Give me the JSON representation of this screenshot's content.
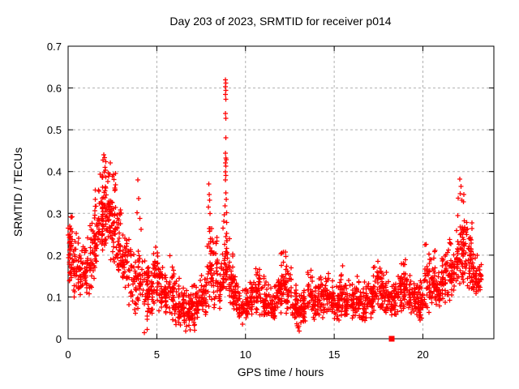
{
  "page": {
    "background": "#ffffff"
  },
  "chart_data": {
    "type": "scatter",
    "title": "Day 203 of 2023, SRMTID for receiver p014",
    "xlabel": "GPS time / hours",
    "ylabel": "SRMTID / TECUs",
    "xlim": [
      0,
      24
    ],
    "ylim": [
      0,
      0.7
    ],
    "grid": true,
    "legend": "none",
    "marker_color": "#ff0000",
    "grid_color": "#b0b0b0",
    "frame_color": "#000000",
    "xticks": [
      {
        "value": 0,
        "label": "0"
      },
      {
        "value": 5,
        "label": "5"
      },
      {
        "value": 10,
        "label": "10"
      },
      {
        "value": 15,
        "label": "15"
      },
      {
        "value": 20,
        "label": "20"
      }
    ],
    "yticks": [
      {
        "value": 0,
        "label": "0"
      },
      {
        "value": 0.1,
        "label": "0.1"
      },
      {
        "value": 0.2,
        "label": "0.2"
      },
      {
        "value": 0.3,
        "label": "0.3"
      },
      {
        "value": 0.4,
        "label": "0.4"
      },
      {
        "value": 0.5,
        "label": "0.5"
      },
      {
        "value": 0.6,
        "label": "0.6"
      },
      {
        "value": 0.7,
        "label": "0.7"
      }
    ],
    "series": [
      {
        "name": "SRMTID",
        "marker": "plus",
        "color": "#ff0000",
        "cluster_bins": [
          [
            0.0,
            0.3,
            45,
            0.13,
            0.31
          ],
          [
            0.3,
            0.6,
            32,
            0.1,
            0.27
          ],
          [
            0.6,
            0.9,
            30,
            0.1,
            0.22
          ],
          [
            0.9,
            1.2,
            30,
            0.1,
            0.25
          ],
          [
            1.2,
            1.5,
            34,
            0.12,
            0.3
          ],
          [
            1.5,
            1.8,
            40,
            0.15,
            0.36
          ],
          [
            1.8,
            2.1,
            48,
            0.2,
            0.44
          ],
          [
            2.1,
            2.4,
            46,
            0.22,
            0.43
          ],
          [
            2.4,
            2.7,
            40,
            0.18,
            0.4
          ],
          [
            2.7,
            3.0,
            34,
            0.14,
            0.33
          ],
          [
            3.0,
            3.3,
            30,
            0.11,
            0.3
          ],
          [
            3.3,
            3.6,
            26,
            0.08,
            0.26
          ],
          [
            3.6,
            3.9,
            24,
            0.06,
            0.22
          ],
          [
            3.9,
            4.2,
            28,
            0.05,
            0.25
          ],
          [
            4.2,
            4.5,
            30,
            0.04,
            0.2
          ],
          [
            4.5,
            4.8,
            30,
            0.06,
            0.18
          ],
          [
            4.8,
            5.1,
            34,
            0.08,
            0.24
          ],
          [
            5.1,
            5.4,
            30,
            0.06,
            0.2
          ],
          [
            5.4,
            5.7,
            30,
            0.05,
            0.18
          ],
          [
            5.7,
            6.0,
            34,
            0.04,
            0.21
          ],
          [
            6.0,
            6.3,
            30,
            0.03,
            0.16
          ],
          [
            6.3,
            6.6,
            30,
            0.03,
            0.13
          ],
          [
            6.6,
            6.9,
            30,
            0.02,
            0.12
          ],
          [
            6.9,
            7.2,
            30,
            0.03,
            0.13
          ],
          [
            7.2,
            7.5,
            30,
            0.04,
            0.14
          ],
          [
            7.5,
            7.8,
            30,
            0.05,
            0.17
          ],
          [
            7.8,
            8.1,
            36,
            0.07,
            0.3
          ],
          [
            8.1,
            8.4,
            28,
            0.05,
            0.25
          ],
          [
            8.4,
            8.7,
            26,
            0.07,
            0.2
          ],
          [
            8.7,
            9.0,
            42,
            0.1,
            0.3
          ],
          [
            9.0,
            9.3,
            36,
            0.08,
            0.24
          ],
          [
            9.3,
            9.6,
            30,
            0.06,
            0.17
          ],
          [
            9.6,
            9.9,
            30,
            0.05,
            0.13
          ],
          [
            9.9,
            10.2,
            30,
            0.05,
            0.12
          ],
          [
            10.2,
            10.5,
            30,
            0.05,
            0.14
          ],
          [
            10.5,
            10.8,
            30,
            0.06,
            0.19
          ],
          [
            10.8,
            11.1,
            30,
            0.05,
            0.16
          ],
          [
            11.1,
            11.4,
            30,
            0.05,
            0.14
          ],
          [
            11.4,
            11.7,
            30,
            0.04,
            0.13
          ],
          [
            11.7,
            12.0,
            30,
            0.06,
            0.16
          ],
          [
            12.0,
            12.3,
            34,
            0.07,
            0.21
          ],
          [
            12.3,
            12.6,
            30,
            0.06,
            0.18
          ],
          [
            12.6,
            12.9,
            30,
            0.04,
            0.13
          ],
          [
            12.9,
            13.2,
            30,
            0.02,
            0.11
          ],
          [
            13.2,
            13.5,
            30,
            0.04,
            0.13
          ],
          [
            13.5,
            13.8,
            30,
            0.05,
            0.185
          ],
          [
            13.8,
            14.1,
            30,
            0.04,
            0.13
          ],
          [
            14.1,
            14.4,
            30,
            0.05,
            0.15
          ],
          [
            14.4,
            14.7,
            30,
            0.06,
            0.185
          ],
          [
            14.7,
            15.0,
            30,
            0.05,
            0.14
          ],
          [
            15.0,
            15.3,
            30,
            0.04,
            0.13
          ],
          [
            15.3,
            15.6,
            30,
            0.05,
            0.185
          ],
          [
            15.6,
            15.9,
            30,
            0.05,
            0.14
          ],
          [
            15.9,
            16.2,
            30,
            0.04,
            0.15
          ],
          [
            16.2,
            16.5,
            30,
            0.05,
            0.16
          ],
          [
            16.5,
            16.8,
            30,
            0.04,
            0.14
          ],
          [
            16.8,
            17.1,
            30,
            0.05,
            0.15
          ],
          [
            17.1,
            17.4,
            30,
            0.06,
            0.18
          ],
          [
            17.4,
            17.7,
            34,
            0.07,
            0.21
          ],
          [
            17.7,
            18.0,
            30,
            0.06,
            0.17
          ],
          [
            18.0,
            18.3,
            30,
            0.05,
            0.15
          ],
          [
            18.3,
            18.6,
            30,
            0.05,
            0.14
          ],
          [
            18.6,
            18.9,
            30,
            0.06,
            0.18
          ],
          [
            18.9,
            19.2,
            30,
            0.06,
            0.2
          ],
          [
            19.2,
            19.5,
            30,
            0.05,
            0.16
          ],
          [
            19.5,
            19.8,
            30,
            0.04,
            0.14
          ],
          [
            19.8,
            20.1,
            30,
            0.04,
            0.15
          ],
          [
            20.1,
            20.4,
            34,
            0.06,
            0.24
          ],
          [
            20.4,
            20.7,
            32,
            0.08,
            0.23
          ],
          [
            20.7,
            21.0,
            30,
            0.07,
            0.18
          ],
          [
            21.0,
            21.3,
            30,
            0.08,
            0.2
          ],
          [
            21.3,
            21.6,
            30,
            0.09,
            0.25
          ],
          [
            21.6,
            21.9,
            30,
            0.1,
            0.22
          ],
          [
            21.9,
            22.2,
            38,
            0.12,
            0.34
          ],
          [
            22.2,
            22.5,
            40,
            0.13,
            0.33
          ],
          [
            22.5,
            22.8,
            36,
            0.12,
            0.28
          ],
          [
            22.8,
            23.1,
            30,
            0.1,
            0.22
          ],
          [
            23.1,
            23.3,
            20,
            0.11,
            0.19
          ]
        ],
        "outlier_points": [
          [
            8.86,
            0.62
          ],
          [
            8.88,
            0.612
          ],
          [
            8.87,
            0.603
          ],
          [
            8.88,
            0.594
          ],
          [
            8.86,
            0.585
          ],
          [
            8.89,
            0.573
          ],
          [
            8.87,
            0.539
          ],
          [
            8.88,
            0.527
          ],
          [
            8.9,
            0.481
          ],
          [
            8.86,
            0.444
          ],
          [
            8.88,
            0.432
          ],
          [
            8.91,
            0.429
          ],
          [
            8.87,
            0.421
          ],
          [
            8.89,
            0.413
          ],
          [
            8.86,
            0.399
          ],
          [
            8.9,
            0.391
          ],
          [
            8.87,
            0.38
          ],
          [
            8.89,
            0.349
          ],
          [
            8.91,
            0.334
          ],
          [
            8.85,
            0.318
          ],
          [
            8.93,
            0.302
          ],
          [
            3.92,
            0.38
          ],
          [
            3.98,
            0.335
          ],
          [
            3.88,
            0.302
          ],
          [
            4.05,
            0.288
          ],
          [
            4.12,
            0.262
          ],
          [
            7.93,
            0.37
          ],
          [
            7.95,
            0.345
          ],
          [
            7.97,
            0.332
          ],
          [
            7.91,
            0.315
          ],
          [
            22.08,
            0.382
          ],
          [
            22.14,
            0.365
          ],
          [
            22.1,
            0.347
          ],
          [
            22.2,
            0.332
          ],
          [
            22.3,
            0.345
          ],
          [
            12.24,
            0.207
          ],
          [
            12.28,
            0.197
          ],
          [
            2.02,
            0.44
          ],
          [
            2.06,
            0.433
          ],
          [
            1.97,
            0.428
          ],
          [
            2.12,
            0.424
          ],
          [
            4.3,
            0.015
          ],
          [
            4.45,
            0.022
          ],
          [
            6.62,
            0.018
          ],
          [
            7.12,
            0.02
          ],
          [
            13.02,
            0.018
          ],
          [
            9.82,
            0.035
          ]
        ]
      },
      {
        "name": "flagged epoch",
        "marker": "filled-square",
        "color": "#ff0000",
        "points": [
          [
            18.24,
            0.0
          ]
        ]
      }
    ]
  }
}
